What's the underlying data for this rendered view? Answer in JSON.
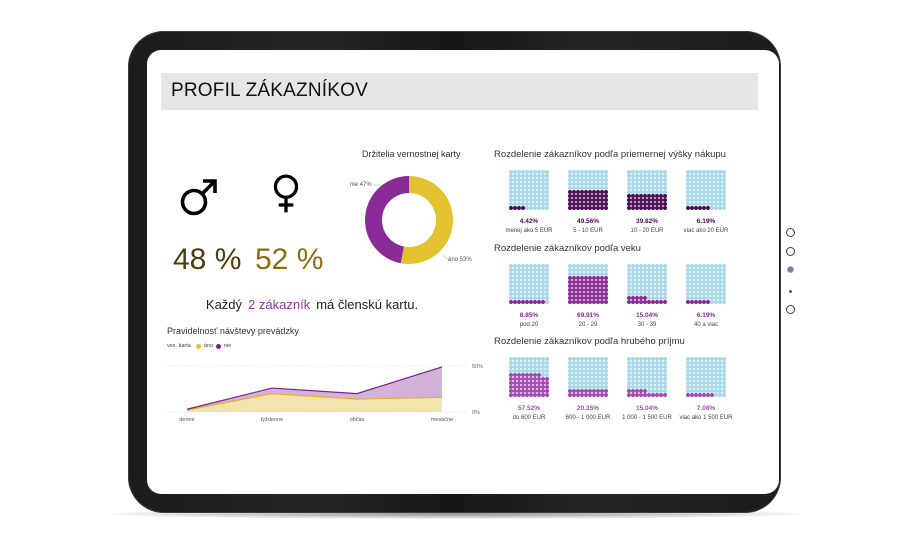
{
  "header": {
    "title": "PROFIL ZÁKAZNÍKOV"
  },
  "gender": {
    "male": {
      "icon": "male-symbol-icon",
      "glyph": "♂",
      "percent": "48 %"
    },
    "female": {
      "icon": "female-symbol-icon",
      "glyph": "♀",
      "percent": "52 %"
    }
  },
  "membership": {
    "prefix": "Každý",
    "highlight": "2 zákazník",
    "suffix": "má členskú kartu."
  },
  "colors": {
    "purple_dark": "#4b0a54",
    "purple": "#8a2a96",
    "purple_light": "#a24ab0",
    "yellow": "#e2c22e",
    "yellow_area": "#f3e4ad",
    "purple_area": "#d3b1d9",
    "waffle_empty": "#a8d8e8",
    "highlight_text": "#8b3a9c",
    "male_text": "#4f3d0a",
    "female_text": "#8c6d0f"
  },
  "donut": {
    "title": "Držitelia vernostnej karty",
    "label_nie": "nie 47%",
    "label_ano": "áno 53%"
  },
  "area": {
    "title": "Pravidelnosť návštevy prevádzky",
    "legend_title": "ves. karta",
    "legend_ano": "áno",
    "legend_nie": "nie",
    "y_top": "50%",
    "y_bottom": "0%",
    "x_labels": [
      "denne",
      "týždenne",
      "občas",
      "mesačne"
    ]
  },
  "waffles": [
    {
      "title": "Rozdelenie zákazníkov podľa priemernej výšky nákupu",
      "items": [
        {
          "pct": "4.42%",
          "label": "menej ako 5 EUR"
        },
        {
          "pct": "49.56%",
          "label": "5 - 10 EUR"
        },
        {
          "pct": "39.82%",
          "label": "10 - 20 EUR"
        },
        {
          "pct": "6.19%",
          "label": "viac ako 20 EUR"
        }
      ]
    },
    {
      "title": "Rozdelenie zákazníkov podľa veku",
      "items": [
        {
          "pct": "8.85%",
          "label": "pod 20"
        },
        {
          "pct": "69.91%",
          "label": "20 - 29"
        },
        {
          "pct": "15.04%",
          "label": "30 - 39"
        },
        {
          "pct": "6.19%",
          "label": "40 a viac"
        }
      ]
    },
    {
      "title": "Rozdelenie zákazníkov podľa hrubého príjmu",
      "items": [
        {
          "pct": "57.52%",
          "label": "do 600 EUR"
        },
        {
          "pct": "20.35%",
          "label": "600 - 1 000 EUR"
        },
        {
          "pct": "15.04%",
          "label": "1 000 - 1 500 EUR"
        },
        {
          "pct": "7.08%",
          "label": "viac ako 1 500 EUR"
        }
      ]
    }
  ],
  "chart_data": [
    {
      "type": "pie",
      "title": "Držitelia vernostnej karty",
      "categories": [
        "áno",
        "nie"
      ],
      "values": [
        53,
        47
      ],
      "colors": [
        "#e2c22e",
        "#8a2a96"
      ],
      "hole": true
    },
    {
      "type": "area",
      "title": "Pravidelnosť návštevy prevádzky",
      "categories": [
        "denne",
        "týždenne",
        "občas",
        "mesačne"
      ],
      "series": [
        {
          "name": "áno",
          "values": [
            2,
            20,
            14,
            16
          ]
        },
        {
          "name": "nie",
          "values": [
            1,
            6,
            6,
            33
          ]
        }
      ],
      "stacked": true,
      "ylim": [
        0,
        50
      ],
      "yticks": [
        "0%",
        "50%"
      ],
      "legend": "top-left",
      "legend_title": "ves. karta"
    },
    {
      "type": "waffle",
      "title": "Rozdelenie zákazníkov podľa priemernej výšky nákupu",
      "categories": [
        "menej ako 5 EUR",
        "5 - 10 EUR",
        "10 - 20 EUR",
        "viac ako 20 EUR"
      ],
      "values": [
        4.42,
        49.56,
        39.82,
        6.19
      ]
    },
    {
      "type": "waffle",
      "title": "Rozdelenie zákazníkov podľa veku",
      "categories": [
        "pod 20",
        "20 - 29",
        "30 - 39",
        "40 a viac"
      ],
      "values": [
        8.85,
        69.91,
        15.04,
        6.19
      ]
    },
    {
      "type": "waffle",
      "title": "Rozdelenie zákazníkov podľa hrubého príjmu",
      "categories": [
        "do 600 EUR",
        "600 - 1 000 EUR",
        "1 000 - 1 500 EUR",
        "viac ako 1 500 EUR"
      ],
      "values": [
        57.52,
        20.35,
        15.04,
        7.08
      ]
    }
  ]
}
